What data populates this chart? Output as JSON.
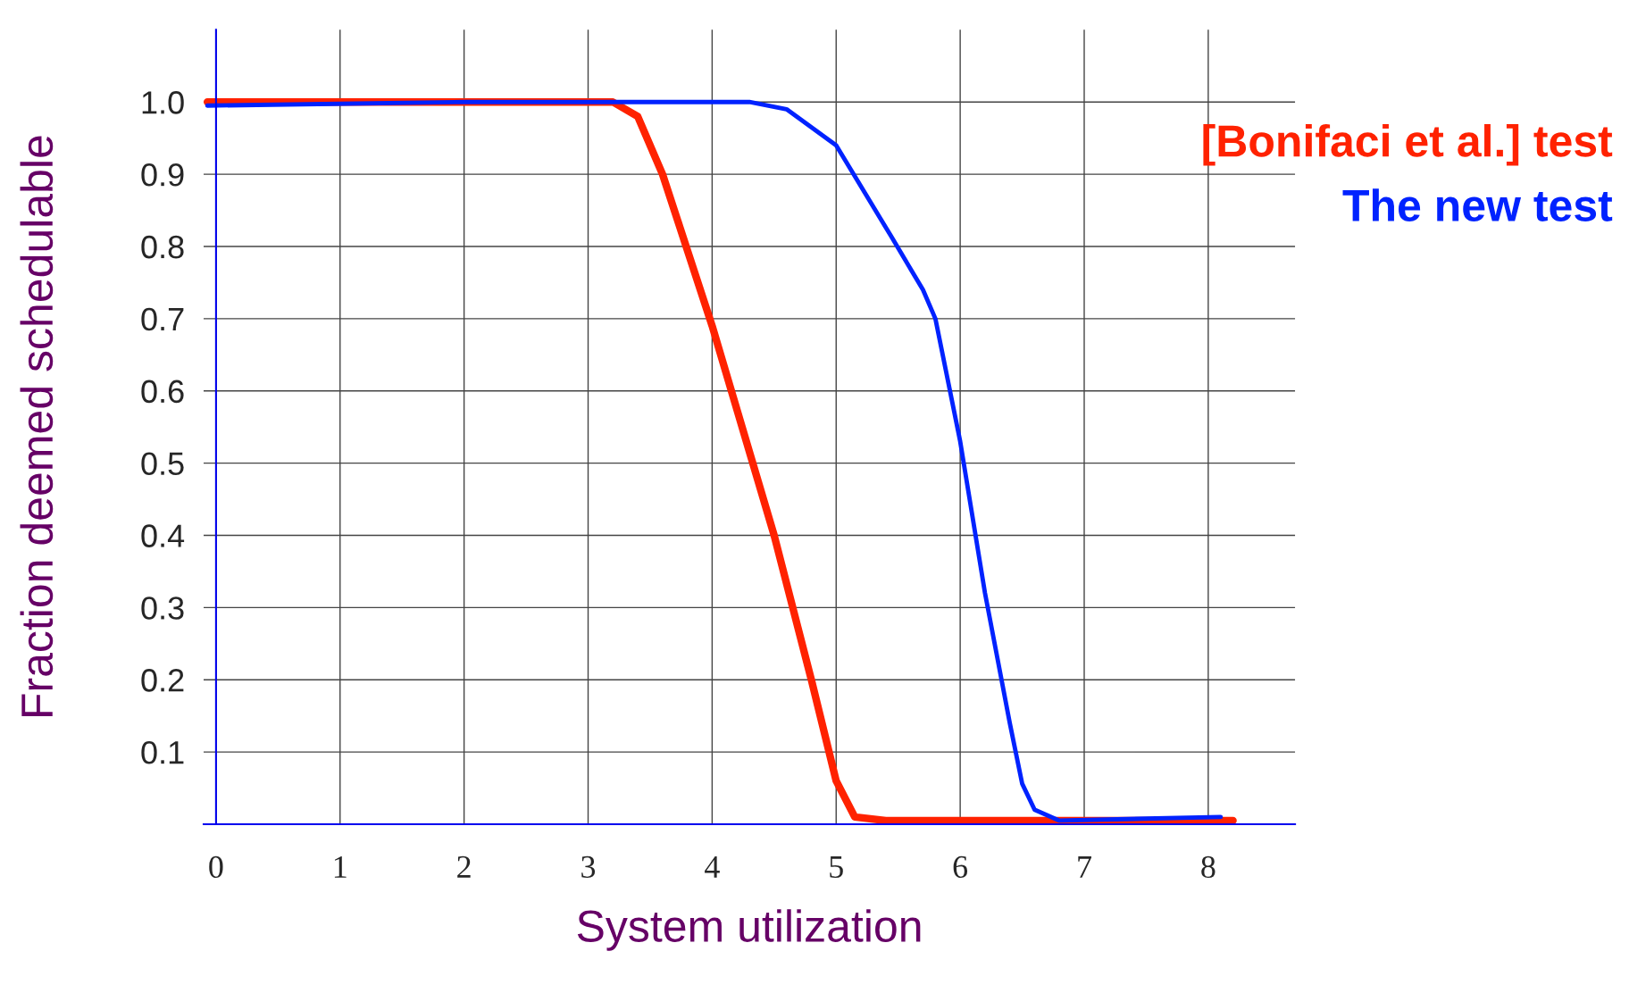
{
  "chart_data": {
    "type": "line",
    "xlabel": "System utilization",
    "ylabel": "Fraction deemed schedulable",
    "xlim": [
      -0.1,
      8.7
    ],
    "ylim": [
      0,
      1.1
    ],
    "xticks": [
      0,
      1,
      2,
      3,
      4,
      5,
      6,
      7,
      8
    ],
    "yticks": [
      {
        "value": 0,
        "label": null
      },
      0.1,
      0.2,
      0.3,
      0.4,
      0.5,
      0.6,
      0.7,
      0.8,
      0.9,
      {
        "value": 1.0,
        "label": "1.0"
      }
    ],
    "grid": true,
    "legend": "top right",
    "marker": "none",
    "line_style": "solid",
    "series": [
      {
        "name": "[Bonifaci et al.] test",
        "color": "#ff2200",
        "x": [
          -0.07,
          1,
          2,
          3,
          3.2,
          3.4,
          3.6,
          4.0,
          4.5,
          4.8,
          5.0,
          5.15,
          5.4,
          8.2
        ],
        "values": [
          1.0,
          1.0,
          1.0,
          1.0,
          1.0,
          0.98,
          0.9,
          0.69,
          0.4,
          0.2,
          0.06,
          0.01,
          0.005,
          0.005
        ]
      },
      {
        "name": "The new test",
        "color": "#0022ff",
        "x": [
          -0.07,
          2,
          4.3,
          4.6,
          5.0,
          5.44,
          5.7,
          5.8,
          6.0,
          6.2,
          6.4,
          6.5,
          6.6,
          6.8,
          8.1
        ],
        "values": [
          0.995,
          1.0,
          1.0,
          0.99,
          0.94,
          0.815,
          0.74,
          0.7,
          0.53,
          0.32,
          0.14,
          0.056,
          0.02,
          0.005,
          0.01
        ]
      }
    ]
  }
}
